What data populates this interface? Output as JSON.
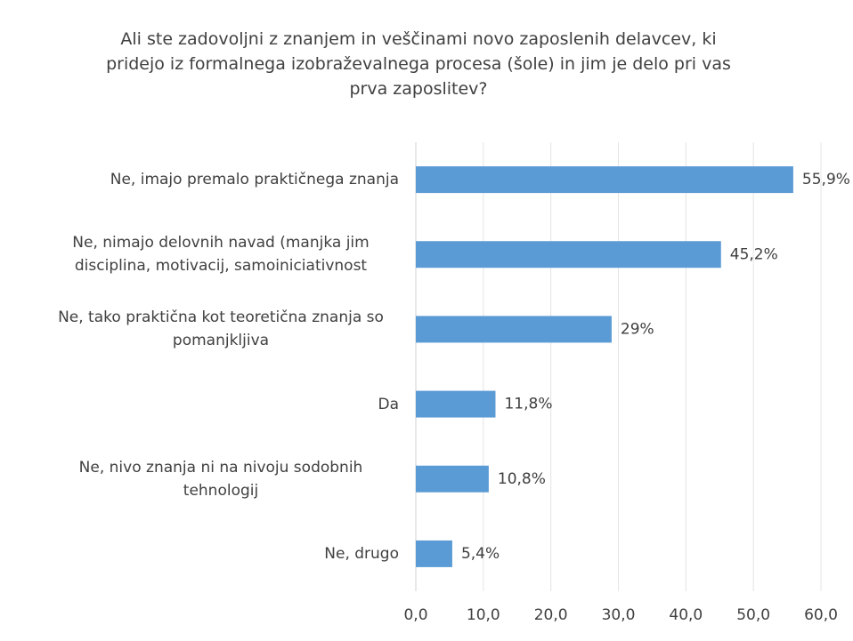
{
  "chart_data": {
    "type": "bar",
    "orientation": "horizontal",
    "title": "Ali ste zadovoljni z znanjem in veščinami novo zaposlenih delavcev, ki pridejo iz formalnega izobraževalnega procesa (šole) in jim je delo pri vas prva zaposlitev?",
    "categories": [
      "Ne, imajo premalo praktičnega znanja",
      "Ne, nimajo delovnih navad (manjka jim disciplina, motivacij, samoiniciativnost",
      "Ne, tako praktična kot teoretična znanja so pomanjkljiva",
      "Da",
      "Ne, nivo znanja ni na nivoju sodobnih tehnologij",
      "Ne, drugo"
    ],
    "values": [
      55.9,
      45.2,
      29,
      11.8,
      10.8,
      5.4
    ],
    "value_labels": [
      "55,9%",
      "45,2%",
      "29%",
      "11,8%",
      "10,8%",
      "5,4%"
    ],
    "color": "#5b9bd5",
    "xlim": [
      0,
      60
    ],
    "xticks": [
      {
        "value": 0,
        "label": "0,0"
      },
      {
        "value": 10,
        "label": "10,0"
      },
      {
        "value": 20,
        "label": "20,0"
      },
      {
        "value": 30,
        "label": "30,0"
      },
      {
        "value": 40,
        "label": "40,0"
      },
      {
        "value": 50,
        "label": "50,0"
      },
      {
        "value": 60,
        "label": "60,0"
      }
    ],
    "grid": true
  }
}
